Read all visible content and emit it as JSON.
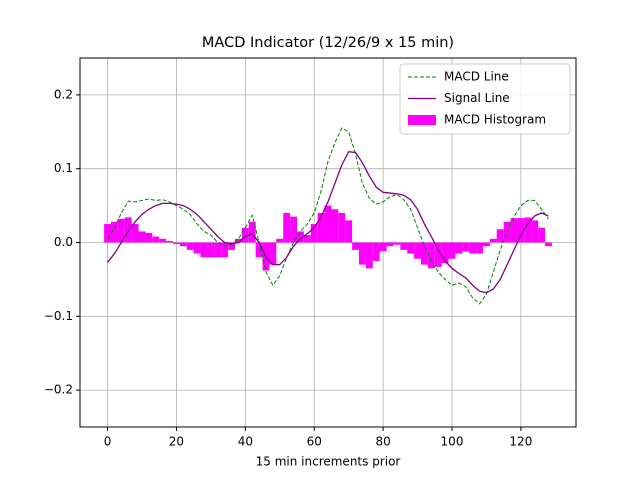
{
  "chart_data": {
    "type": "line",
    "title": "MACD Indicator (12/26/9 x 15 min)",
    "x_label": "15 min increments prior",
    "x": [
      0,
      2,
      4,
      6,
      8,
      10,
      12,
      14,
      16,
      18,
      20,
      22,
      24,
      26,
      28,
      30,
      32,
      34,
      36,
      38,
      40,
      42,
      44,
      46,
      48,
      50,
      52,
      54,
      56,
      58,
      60,
      62,
      64,
      66,
      68,
      70,
      72,
      74,
      76,
      78,
      80,
      82,
      84,
      86,
      88,
      90,
      92,
      94,
      96,
      98,
      100,
      102,
      104,
      106,
      108,
      110,
      112,
      114,
      116,
      118,
      120,
      122,
      124,
      126,
      128
    ],
    "series": [
      {
        "name": "MACD Histogram",
        "type": "bar",
        "color": "#ff00ff",
        "values": [
          0.025,
          0.028,
          0.032,
          0.034,
          0.025,
          0.015,
          0.013,
          0.008,
          0.005,
          0.002,
          -0.002,
          -0.005,
          -0.01,
          -0.015,
          -0.02,
          -0.02,
          -0.02,
          -0.02,
          -0.01,
          0.005,
          0.02,
          0.028,
          -0.02,
          -0.038,
          -0.03,
          0.005,
          0.04,
          0.035,
          0.015,
          0.01,
          0.025,
          0.04,
          0.05,
          0.045,
          0.04,
          0.03,
          -0.01,
          -0.03,
          -0.035,
          -0.025,
          -0.012,
          -0.005,
          -0.003,
          -0.01,
          -0.015,
          -0.022,
          -0.03,
          -0.035,
          -0.033,
          -0.028,
          -0.022,
          -0.015,
          -0.012,
          -0.015,
          -0.015,
          -0.005,
          0.005,
          0.018,
          0.028,
          0.033,
          0.033,
          0.034,
          0.03,
          0.02,
          -0.005
        ]
      },
      {
        "name": "MACD Line",
        "type": "line",
        "style": "dashed",
        "color": "#008000",
        "values": [
          0.005,
          0.02,
          0.04,
          0.056,
          0.055,
          0.057,
          0.059,
          0.057,
          0.058,
          0.055,
          0.05,
          0.045,
          0.038,
          0.025,
          0.015,
          0.01,
          0.0,
          -0.005,
          -0.003,
          0.005,
          0.02,
          0.037,
          0.0,
          -0.04,
          -0.058,
          -0.045,
          -0.02,
          0.0,
          0.015,
          0.025,
          0.04,
          0.07,
          0.11,
          0.135,
          0.155,
          0.15,
          0.12,
          0.08,
          0.06,
          0.052,
          0.055,
          0.062,
          0.065,
          0.058,
          0.045,
          0.02,
          -0.005,
          -0.025,
          -0.04,
          -0.05,
          -0.058,
          -0.055,
          -0.06,
          -0.075,
          -0.083,
          -0.07,
          -0.04,
          -0.01,
          0.015,
          0.035,
          0.05,
          0.057,
          0.057,
          0.045,
          0.032
        ]
      },
      {
        "name": "Signal Line",
        "type": "line",
        "style": "solid",
        "color": "#800080",
        "values": [
          -0.027,
          -0.015,
          0.0,
          0.015,
          0.028,
          0.038,
          0.045,
          0.05,
          0.053,
          0.053,
          0.052,
          0.05,
          0.045,
          0.038,
          0.028,
          0.018,
          0.008,
          0.0,
          -0.002,
          0.0,
          0.008,
          0.012,
          0.0,
          -0.02,
          -0.03,
          -0.03,
          -0.02,
          -0.005,
          0.005,
          0.012,
          0.02,
          0.035,
          0.055,
          0.08,
          0.105,
          0.123,
          0.122,
          0.108,
          0.09,
          0.075,
          0.068,
          0.067,
          0.066,
          0.064,
          0.058,
          0.045,
          0.025,
          0.008,
          -0.01,
          -0.025,
          -0.035,
          -0.042,
          -0.048,
          -0.058,
          -0.066,
          -0.068,
          -0.063,
          -0.05,
          -0.03,
          -0.01,
          0.01,
          0.025,
          0.036,
          0.04,
          0.036
        ]
      }
    ],
    "legend_order": [
      1,
      2,
      0
    ],
    "xlim": [
      -8,
      136
    ],
    "xticks": [
      0,
      20,
      40,
      60,
      80,
      100,
      120
    ],
    "ylim": [
      -0.25,
      0.25
    ],
    "yticks": [
      {
        "value": -0.2,
        "label": "−0.2"
      },
      {
        "value": -0.1,
        "label": "−0.1"
      },
      {
        "value": 0,
        "label": "0.0"
      },
      0.1,
      0.2
    ],
    "grid": true,
    "legend": "upper right"
  }
}
